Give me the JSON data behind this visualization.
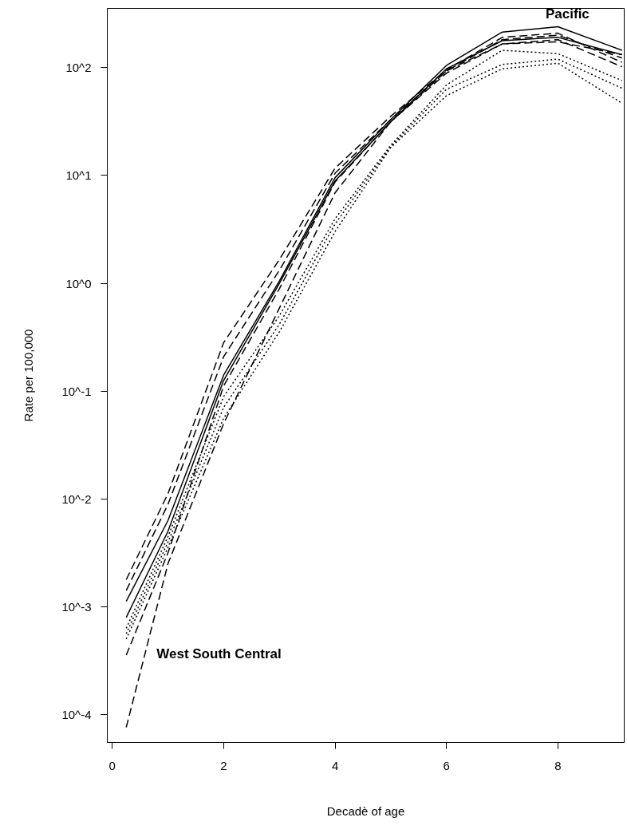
{
  "chart_data": {
    "type": "line",
    "xlabel": "Decadè of age",
    "ylabel": "Rate per 100,000",
    "log": "y",
    "grid": false,
    "legend": false,
    "marker": "none",
    "x": [
      0.25,
      1,
      2,
      3,
      4,
      5,
      6,
      7,
      8,
      9.15
    ],
    "xlim": [
      -0.09,
      9.19
    ],
    "xticks": [
      0,
      2,
      4,
      6,
      8
    ],
    "ylim": [
      5.5e-05,
      355
    ],
    "yticks": [
      {
        "value": 0.0001,
        "label": "10^-4"
      },
      {
        "value": 0.001,
        "label": "10^-3"
      },
      {
        "value": 0.01,
        "label": "10^-2"
      },
      {
        "value": 0.1,
        "label": "10^-1"
      },
      {
        "value": 1,
        "label": "10^0"
      },
      {
        "value": 10,
        "label": "10^1"
      },
      {
        "value": 100,
        "label": "10^2"
      }
    ],
    "series": [
      {
        "name": "Pacific",
        "color": "#000000",
        "line_style": "solid",
        "values": [
          0.00112,
          0.00631,
          0.141,
          1.05,
          9.55,
          33.1,
          105,
          214,
          240,
          145
        ]
      },
      {
        "color": "#000000",
        "line_style": "solid",
        "values": [
          0.000794,
          0.00501,
          0.126,
          1.0,
          8.91,
          31.6,
          97.7,
          178,
          191,
          132
        ]
      },
      {
        "color": "#000000",
        "line_style": "dashed",
        "values": [
          0.00178,
          0.0112,
          0.282,
          1.66,
          11.7,
          35.5,
          95.5,
          191,
          209,
          112
        ]
      },
      {
        "color": "#000000",
        "line_style": "dashed",
        "values": [
          0.00141,
          0.00891,
          0.209,
          1.32,
          10.5,
          33.1,
          93.3,
          182,
          200,
          123
        ]
      },
      {
        "color": "#000000",
        "line_style": "dashed",
        "values": [
          0.000355,
          0.00316,
          0.112,
          0.891,
          8.71,
          31.6,
          89.1,
          166,
          182,
          102
        ]
      },
      {
        "name": "West South Central",
        "color": "#000000",
        "line_style": "dashed",
        "values": [
          7.59e-05,
          0.00251,
          0.0501,
          0.589,
          6.92,
          31.6,
          93.3,
          166,
          174,
          132
        ]
      },
      {
        "color": "#000000",
        "line_style": "dotted",
        "values": [
          0.000631,
          0.00447,
          0.0891,
          0.501,
          3.98,
          19.1,
          69.2,
          145,
          135,
          75.9
        ]
      },
      {
        "color": "#000000",
        "line_style": "dotted",
        "values": [
          0.000562,
          0.00398,
          0.0708,
          0.417,
          3.55,
          18.6,
          63.1,
          107,
          120,
          64.6
        ]
      },
      {
        "color": "#000000",
        "line_style": "dotted",
        "values": [
          0.000501,
          0.00355,
          0.0562,
          0.355,
          3.02,
          18.2,
          55.0,
          97.7,
          110,
          46.8
        ]
      }
    ]
  }
}
